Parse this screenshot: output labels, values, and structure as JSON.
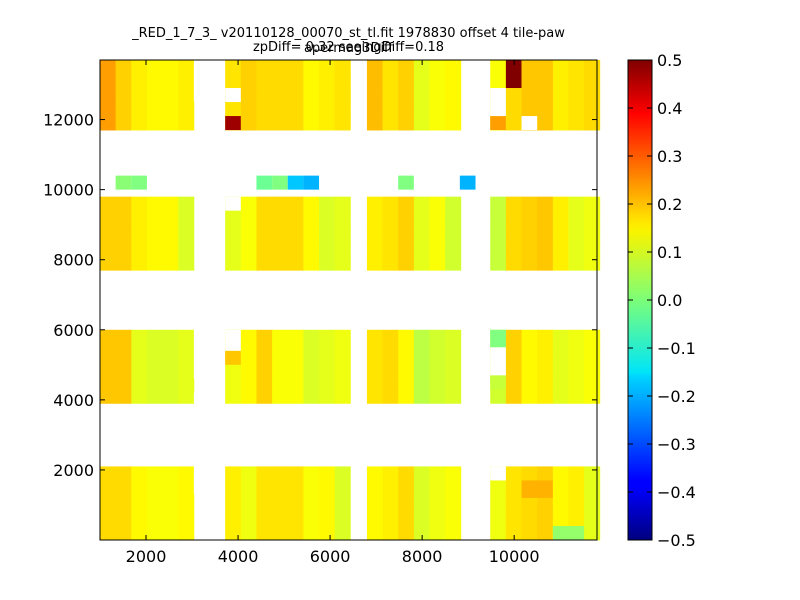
{
  "chart_data": {
    "type": "heatmap",
    "title_lines": [
      "_RED_1_7_3_ v20110128_00070_st_tl.fit 1978830 offset 4 tile-paw apermag3Diff",
      "zpDiff= 0.32 seeingDiff=0.18"
    ],
    "xlim": [
      1000,
      11800
    ],
    "ylim": [
      0,
      13700
    ],
    "x_ticks": [
      2000,
      4000,
      6000,
      8000,
      10000
    ],
    "y_ticks": [
      2000,
      4000,
      6000,
      8000,
      10000,
      12000
    ],
    "colorbar": {
      "colormap": "jet",
      "vmin": -0.5,
      "vmax": 0.5,
      "ticks": [
        0.5,
        0.4,
        0.3,
        0.2,
        0.1,
        0.0,
        -0.1,
        -0.2,
        -0.3,
        -0.4,
        -0.5
      ],
      "tick_labels": [
        "0.5",
        "0.4",
        "0.3",
        "0.2",
        "0.1",
        "0.0",
        "−0.1",
        "−0.2",
        "−0.3",
        "−0.4",
        "−0.5"
      ]
    },
    "cell_size": [
      340,
      400
    ],
    "columns": [
      {
        "x0": 1000,
        "n": 3,
        "base": [
          0.17,
          0.16,
          0.12
        ]
      },
      {
        "x0": 2020,
        "n": 3,
        "base": [
          0.11,
          0.1,
          0.1
        ]
      },
      {
        "x0": 3720,
        "n": 2,
        "base": [
          0.11,
          0.12
        ]
      },
      {
        "x0": 4400,
        "n": 3,
        "base": [
          0.15,
          0.14,
          0.13
        ]
      },
      {
        "x0": 5420,
        "n": 3,
        "base": [
          0.1,
          0.1,
          0.1
        ]
      },
      {
        "x0": 6800,
        "n": 3,
        "base": [
          0.14,
          0.14,
          0.15
        ]
      },
      {
        "x0": 7820,
        "n": 3,
        "base": [
          0.08,
          0.09,
          0.09
        ]
      },
      {
        "x0": 9480,
        "n": 1,
        "base": [
          0.08
        ]
      },
      {
        "x0": 9820,
        "n": 3,
        "base": [
          0.15,
          0.15,
          0.15
        ]
      },
      {
        "x0": 10840,
        "n": 3,
        "base": [
          0.11,
          0.11,
          0.11
        ]
      }
    ],
    "row_bands": [
      [
        0,
        2100
      ],
      [
        3900,
        6000
      ],
      [
        7700,
        9800
      ],
      [
        11700,
        13700
      ]
    ],
    "row_band_offsets": [
      0.01,
      0.0,
      0.01,
      0.03
    ],
    "outliers": [
      {
        "x": 9820,
        "y": 12900,
        "w": 340,
        "h": 800,
        "value": 0.5
      },
      {
        "x": 3720,
        "y": 11700,
        "w": 340,
        "h": 400,
        "value": 0.47
      },
      {
        "x": 9480,
        "y": 11700,
        "w": 340,
        "h": 400,
        "value": 0.22
      },
      {
        "x": 10160,
        "y": 12100,
        "w": 680,
        "h": 1600,
        "value": 0.18
      },
      {
        "x": 3720,
        "y": 5000,
        "w": 340,
        "h": 400,
        "value": 0.18
      },
      {
        "x": 10160,
        "y": 1200,
        "w": 680,
        "h": 500,
        "value": 0.2
      },
      {
        "x": 10840,
        "y": 0,
        "w": 680,
        "h": 400,
        "value": 0.02
      },
      {
        "x": 9480,
        "y": 5500,
        "w": 340,
        "h": 500,
        "value": 0.0
      },
      {
        "x": 9480,
        "y": 4300,
        "w": 340,
        "h": 400,
        "value": 0.07
      },
      {
        "x": 1680,
        "y": 10000,
        "w": 340,
        "h": 400,
        "value": 0.0
      },
      {
        "x": 1340,
        "y": 10000,
        "w": 340,
        "h": 400,
        "value": 0.01
      },
      {
        "x": 4400,
        "y": 10000,
        "w": 340,
        "h": 400,
        "value": -0.02
      },
      {
        "x": 4740,
        "y": 10000,
        "w": 340,
        "h": 400,
        "value": 0.0
      },
      {
        "x": 5080,
        "y": 10000,
        "w": 340,
        "h": 400,
        "value": -0.18
      },
      {
        "x": 5420,
        "y": 10000,
        "w": 340,
        "h": 400,
        "value": -0.2
      },
      {
        "x": 7480,
        "y": 10000,
        "w": 340,
        "h": 400,
        "value": 0.0
      },
      {
        "x": 8820,
        "y": 10000,
        "w": 340,
        "h": 400,
        "value": -0.2
      }
    ],
    "white_gaps": [
      {
        "x": 3040,
        "y": 12500,
        "w": 340,
        "h": 1200
      },
      {
        "x": 3720,
        "y": 12500,
        "w": 340,
        "h": 400
      },
      {
        "x": 9480,
        "y": 12100,
        "w": 340,
        "h": 800
      },
      {
        "x": 10160,
        "y": 11700,
        "w": 340,
        "h": 400
      },
      {
        "x": 3720,
        "y": 9400,
        "w": 340,
        "h": 400
      },
      {
        "x": 3720,
        "y": 5400,
        "w": 340,
        "h": 600
      },
      {
        "x": 9480,
        "y": 4700,
        "w": 340,
        "h": 800
      },
      {
        "x": 3040,
        "y": 4600,
        "w": 340,
        "h": 1400
      },
      {
        "x": 3040,
        "y": 3900,
        "w": 340,
        "h": 300
      },
      {
        "x": 3040,
        "y": 1300,
        "w": 340,
        "h": 800
      },
      {
        "x": 9480,
        "y": 1700,
        "w": 340,
        "h": 400
      }
    ]
  }
}
